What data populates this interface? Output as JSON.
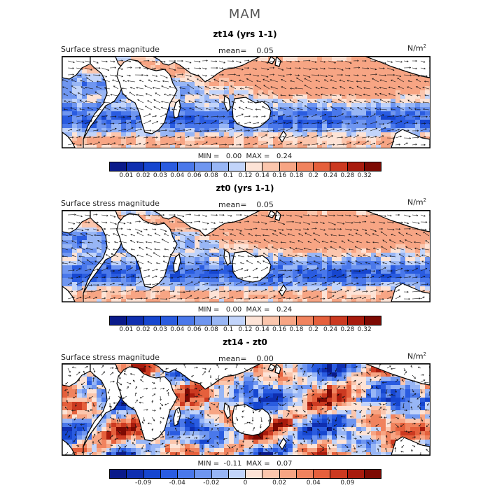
{
  "season": "MAM",
  "panels": [
    {
      "title": "zt14 (yrs 1-1)",
      "variable": "Surface stress magnitude",
      "mean_label": "mean=",
      "mean_value": "0.05",
      "units_base": "N/m",
      "units_exp": "2",
      "min_label": "MIN =",
      "min_value": "0.00",
      "max_label": "MAX =",
      "max_value": "0.24",
      "colorbar_colors": [
        "#0a1a8a",
        "#0f2fb0",
        "#1646cf",
        "#2a5ce0",
        "#4a78ea",
        "#6f96f0",
        "#98b6f5",
        "#c2d4fa",
        "#fde3d6",
        "#fbc6ad",
        "#f7a584",
        "#f0835e",
        "#e5603c",
        "#cc3a21",
        "#a81b0d",
        "#7d0a03"
      ],
      "colorbar_labels": [
        "0.01",
        "0.02",
        "0.03",
        "0.04",
        "0.06",
        "0.08",
        "0.1",
        "0.12",
        "0.14",
        "0.16",
        "0.18",
        "0.2",
        "0.24",
        "0.28",
        "0.32"
      ],
      "field": "mag",
      "arrow_scale": 1.0
    },
    {
      "title": "zt0 (yrs 1-1)",
      "variable": "Surface stress magnitude",
      "mean_label": "mean=",
      "mean_value": "0.05",
      "units_base": "N/m",
      "units_exp": "2",
      "min_label": "MIN =",
      "min_value": "0.00",
      "max_label": "MAX =",
      "max_value": "0.24",
      "colorbar_colors": [
        "#0a1a8a",
        "#0f2fb0",
        "#1646cf",
        "#2a5ce0",
        "#4a78ea",
        "#6f96f0",
        "#98b6f5",
        "#c2d4fa",
        "#fde3d6",
        "#fbc6ad",
        "#f7a584",
        "#f0835e",
        "#e5603c",
        "#cc3a21",
        "#a81b0d",
        "#7d0a03"
      ],
      "colorbar_labels": [
        "0.01",
        "0.02",
        "0.03",
        "0.04",
        "0.06",
        "0.08",
        "0.1",
        "0.12",
        "0.14",
        "0.16",
        "0.18",
        "0.2",
        "0.24",
        "0.28",
        "0.32"
      ],
      "field": "mag",
      "arrow_scale": 1.0
    },
    {
      "title": "zt14 - zt0",
      "variable": "Surface stress magnitude",
      "mean_label": "mean=",
      "mean_value": "0.00",
      "units_base": "N/m",
      "units_exp": "2",
      "min_label": "MIN =",
      "min_value": "-0.11",
      "max_label": "MAX =",
      "max_value": "0.07",
      "colorbar_colors": [
        "#0a1a8a",
        "#0f2fb0",
        "#1646cf",
        "#2a5ce0",
        "#4a78ea",
        "#6f96f0",
        "#98b6f5",
        "#c2d4fa",
        "#fde3d6",
        "#fbc6ad",
        "#f7a584",
        "#f0835e",
        "#e5603c",
        "#cc3a21",
        "#a81b0d",
        "#7d0a03"
      ],
      "colorbar_labels": [
        "",
        "-0.09",
        "",
        "-0.04",
        "",
        "-0.02",
        "",
        "0",
        "",
        "0.02",
        "",
        "0.04",
        "",
        "0.09",
        ""
      ],
      "field": "diff",
      "arrow_scale": 0.55
    }
  ],
  "colors": {
    "land": "#ffffff",
    "coast": "#000000",
    "arrow": "#111111"
  }
}
